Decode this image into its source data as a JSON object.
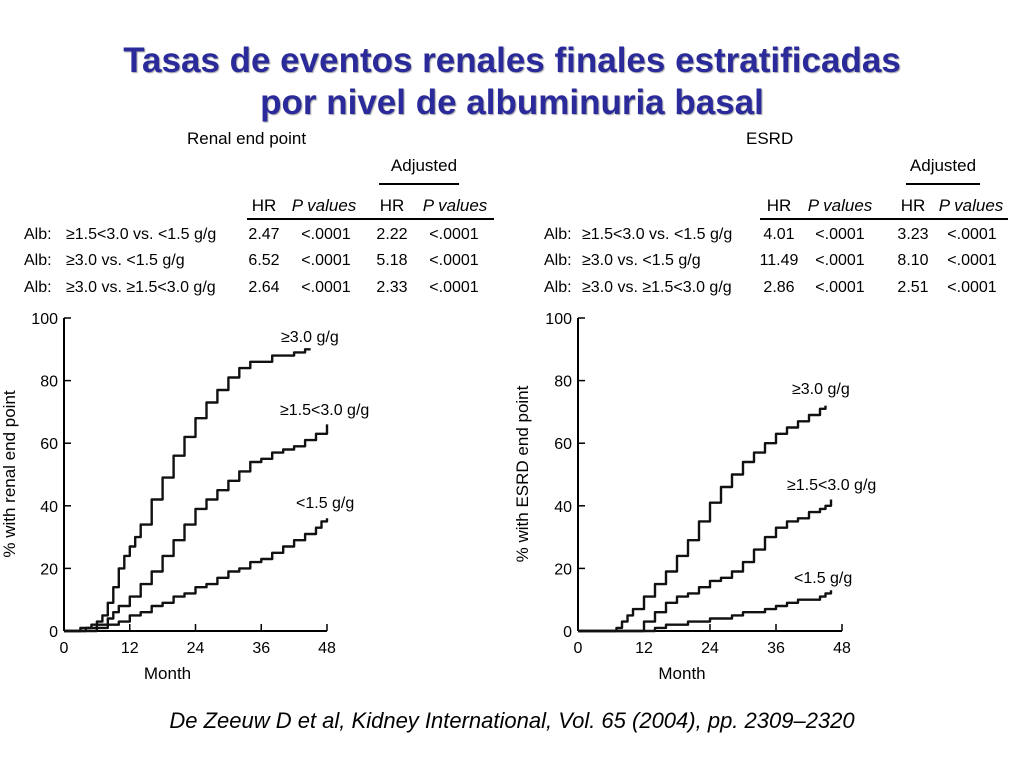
{
  "slide": {
    "title_line1": "Tasas de eventos renales finales estratificadas",
    "title_line2": "por nivel de albuminuria basal",
    "citation": "De Zeeuw D et al, Kidney International, Vol. 65 (2004), pp. 2309–2320"
  },
  "tables": [
    {
      "heading": "Adjusted",
      "columns": [
        "HR",
        "P values",
        "HR",
        "P values"
      ],
      "rows": [
        {
          "label": "Alb:",
          "comparison": "≥1.5<3.0 vs. <1.5 g/g",
          "hr": "2.47",
          "p": "<.0001",
          "adj_hr": "2.22",
          "adj_p": "<.0001"
        },
        {
          "label": "Alb:",
          "comparison": "≥3.0 vs. <1.5 g/g",
          "hr": "6.52",
          "p": "<.0001",
          "adj_hr": "5.18",
          "adj_p": "<.0001"
        },
        {
          "label": "Alb:",
          "comparison": "≥3.0 vs. ≥1.5<3.0 g/g",
          "hr": "2.64",
          "p": "<.0001",
          "adj_hr": "2.33",
          "adj_p": "<.0001"
        }
      ]
    },
    {
      "heading": "Adjusted",
      "columns": [
        "HR",
        "P values",
        "HR",
        "P values"
      ],
      "rows": [
        {
          "label": "Alb:",
          "comparison": "≥1.5<3.0 vs. <1.5 g/g",
          "hr": "4.01",
          "p": "<.0001",
          "adj_hr": "3.23",
          "adj_p": "<.0001"
        },
        {
          "label": "Alb:",
          "comparison": "≥3.0 vs. <1.5 g/g",
          "hr": "11.49",
          "p": "<.0001",
          "adj_hr": "8.10",
          "adj_p": "<.0001"
        },
        {
          "label": "Alb:",
          "comparison": "≥3.0 vs. ≥1.5<3.0 g/g",
          "hr": "2.86",
          "p": "<.0001",
          "adj_hr": "2.51",
          "adj_p": "<.0001"
        }
      ]
    }
  ],
  "chart_data": [
    {
      "type": "line",
      "title": "Renal end point",
      "xlabel": "Month",
      "ylabel": "% with renal end point",
      "xlim": [
        0,
        48
      ],
      "ylim": [
        0,
        100
      ],
      "xticks": [
        0,
        12,
        24,
        36,
        48
      ],
      "yticks": [
        0,
        20,
        40,
        60,
        80,
        100
      ],
      "grid": false,
      "legend": "inline labels at curve ends",
      "line_color": "#111111",
      "series": [
        {
          "name": "≥3.0 g/g",
          "x": [
            0,
            3,
            5,
            6,
            7,
            8,
            9,
            10,
            11,
            12,
            13,
            14,
            16,
            18,
            20,
            22,
            24,
            26,
            28,
            30,
            32,
            34,
            36,
            38,
            40,
            42,
            44,
            45
          ],
          "y": [
            0,
            1,
            2,
            3,
            5,
            9,
            14,
            20,
            24,
            27,
            30,
            34,
            42,
            49,
            56,
            62,
            68,
            73,
            77,
            81,
            84,
            86,
            86,
            88,
            88,
            89,
            90,
            90
          ]
        },
        {
          "name": "≥1.5<3.0 g/g",
          "x": [
            0,
            4,
            6,
            8,
            9,
            10,
            12,
            14,
            16,
            18,
            20,
            22,
            24,
            26,
            28,
            30,
            32,
            34,
            36,
            38,
            40,
            42,
            44,
            46,
            47,
            48
          ],
          "y": [
            0,
            1,
            2,
            4,
            6,
            8,
            11,
            15,
            19,
            24,
            29,
            34,
            39,
            42,
            45,
            48,
            51,
            54,
            55,
            57,
            58,
            59,
            61,
            63,
            63,
            66
          ]
        },
        {
          "name": "<1.5 g/g",
          "x": [
            0,
            6,
            8,
            10,
            12,
            14,
            16,
            18,
            20,
            22,
            24,
            26,
            28,
            30,
            32,
            34,
            36,
            38,
            40,
            42,
            44,
            46,
            47,
            48
          ],
          "y": [
            0,
            1,
            2,
            3,
            5,
            6,
            8,
            9,
            11,
            12,
            14,
            15,
            17,
            19,
            20,
            22,
            23,
            25,
            27,
            29,
            31,
            33,
            35,
            36
          ]
        }
      ]
    },
    {
      "type": "line",
      "title": "ESRD",
      "xlabel": "Month",
      "ylabel": "% with ESRD end point",
      "xlim": [
        0,
        48
      ],
      "ylim": [
        0,
        100
      ],
      "xticks": [
        0,
        12,
        24,
        36,
        48
      ],
      "yticks": [
        0,
        20,
        40,
        60,
        80,
        100
      ],
      "grid": false,
      "legend": "inline labels at curve ends",
      "line_color": "#111111",
      "series": [
        {
          "name": "≥3.0 g/g",
          "x": [
            0,
            6,
            7,
            8,
            9,
            10,
            12,
            14,
            16,
            18,
            20,
            22,
            24,
            26,
            28,
            30,
            32,
            34,
            36,
            38,
            40,
            42,
            44,
            45
          ],
          "y": [
            0,
            0,
            1,
            3,
            5,
            7,
            11,
            15,
            19,
            24,
            29,
            35,
            41,
            46,
            50,
            54,
            57,
            60,
            63,
            65,
            67,
            69,
            71,
            72
          ]
        },
        {
          "name": "≥1.5<3.0 g/g",
          "x": [
            0,
            10,
            12,
            14,
            16,
            18,
            20,
            22,
            24,
            26,
            28,
            30,
            32,
            34,
            36,
            38,
            40,
            42,
            44,
            45,
            46
          ],
          "y": [
            0,
            0,
            3,
            6,
            9,
            11,
            12,
            14,
            16,
            17,
            19,
            22,
            26,
            30,
            33,
            35,
            36,
            38,
            39,
            40,
            42
          ]
        },
        {
          "name": "<1.5 g/g",
          "x": [
            0,
            12,
            14,
            16,
            18,
            20,
            22,
            24,
            26,
            28,
            30,
            32,
            34,
            36,
            38,
            40,
            42,
            44,
            45,
            46
          ],
          "y": [
            0,
            0,
            1,
            2,
            2,
            3,
            3,
            4,
            4,
            5,
            6,
            6,
            7,
            8,
            9,
            10,
            10,
            11,
            12,
            13
          ]
        }
      ]
    }
  ]
}
